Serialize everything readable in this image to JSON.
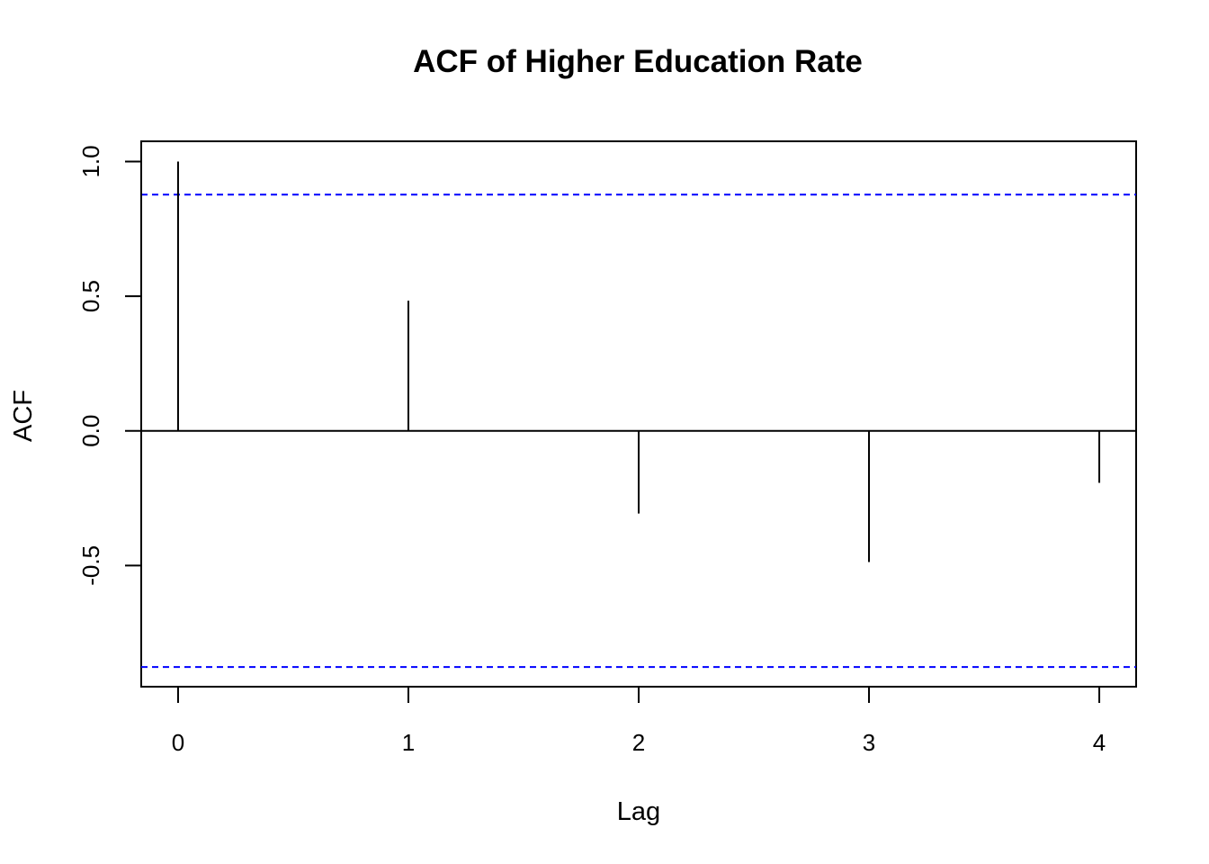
{
  "chart_data": {
    "type": "bar",
    "title": "ACF of Higher Education Rate",
    "xlabel": "Lag",
    "ylabel": "ACF",
    "x": [
      0,
      1,
      2,
      3,
      4
    ],
    "values": [
      1.0,
      0.483,
      -0.307,
      -0.487,
      -0.193
    ],
    "xlim": [
      -0.16,
      4.16
    ],
    "ylim": [
      -0.95,
      1.075
    ],
    "xticks": [
      "0",
      "1",
      "2",
      "3",
      "4"
    ],
    "yticks": [
      "-0.5",
      "0.0",
      "0.5",
      "1.0"
    ],
    "confidence_bound": 0.877,
    "colors": {
      "bars": "#000000",
      "confidence_lines": "#0000ff",
      "zero_line": "#000000"
    },
    "grid": false,
    "legend": "none"
  }
}
